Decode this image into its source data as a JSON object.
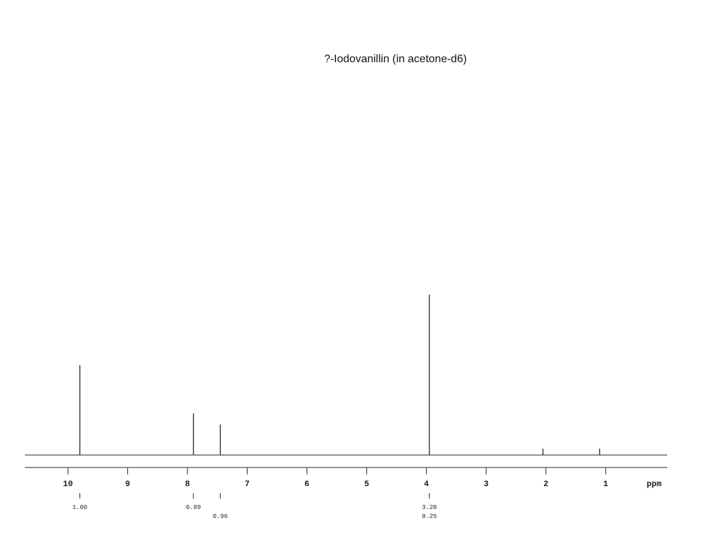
{
  "chart_data": {
    "type": "spectrum",
    "title": "?-Iodovanillin (in acetone-d6)",
    "x_label": "ppm",
    "xlim": [
      10.72,
      -0.03
    ],
    "xticks": [
      10,
      9,
      8,
      7,
      6,
      5,
      4,
      3,
      2,
      1
    ],
    "ylim": [
      0,
      100
    ],
    "color": "#222222",
    "x": [
      9.8,
      7.9,
      7.45,
      3.95,
      2.05,
      1.1
    ],
    "values": [
      56,
      26,
      19,
      100,
      4,
      4
    ],
    "integrals": {
      "x": [
        9.8,
        7.9,
        7.45,
        3.95,
        3.95
      ],
      "values": [
        1.0,
        0.89,
        0.96,
        3.2,
        0.25
      ],
      "value_labels": [
        "1.00",
        "0.89",
        "0.96",
        "3.20",
        "0.25"
      ]
    }
  }
}
